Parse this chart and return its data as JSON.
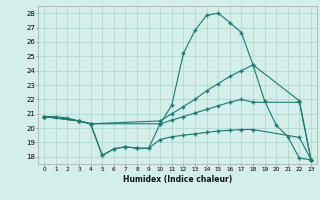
{
  "xlabel": "Humidex (Indice chaleur)",
  "line_color": "#1a7a6e",
  "bg_color": "#d4eeea",
  "grid_color": "#aed4ce",
  "xlim": [
    -0.5,
    23.5
  ],
  "ylim": [
    17.5,
    28.5
  ],
  "xticks": [
    0,
    1,
    2,
    3,
    4,
    5,
    6,
    7,
    8,
    9,
    10,
    11,
    12,
    13,
    14,
    15,
    16,
    17,
    18,
    19,
    20,
    21,
    22,
    23
  ],
  "yticks": [
    18,
    19,
    20,
    21,
    22,
    23,
    24,
    25,
    26,
    27,
    28
  ],
  "lines": [
    {
      "x": [
        0,
        1,
        2,
        3,
        4,
        5,
        6,
        7,
        8,
        9,
        10,
        11,
        12,
        13,
        14,
        15,
        16,
        17,
        18,
        19,
        20,
        21,
        22,
        23
      ],
      "y": [
        20.8,
        20.8,
        20.7,
        20.5,
        20.3,
        18.1,
        18.55,
        18.7,
        18.6,
        18.6,
        20.3,
        21.6,
        25.2,
        26.8,
        27.85,
        28.0,
        27.35,
        26.65,
        24.4,
        21.9,
        20.2,
        19.4,
        17.9,
        17.8
      ]
    },
    {
      "x": [
        0,
        3,
        4,
        10,
        11,
        12,
        13,
        14,
        15,
        16,
        17,
        18,
        22,
        23
      ],
      "y": [
        20.8,
        20.5,
        20.3,
        20.5,
        21.0,
        21.5,
        22.0,
        22.6,
        23.1,
        23.6,
        24.0,
        24.4,
        21.9,
        17.8
      ]
    },
    {
      "x": [
        0,
        3,
        4,
        10,
        11,
        12,
        13,
        14,
        15,
        16,
        17,
        18,
        22,
        23
      ],
      "y": [
        20.8,
        20.5,
        20.3,
        20.3,
        20.55,
        20.8,
        21.05,
        21.3,
        21.55,
        21.8,
        22.0,
        21.8,
        21.8,
        17.8
      ]
    },
    {
      "x": [
        0,
        3,
        4,
        5,
        6,
        7,
        8,
        9,
        10,
        11,
        12,
        13,
        14,
        15,
        16,
        17,
        18,
        22,
        23
      ],
      "y": [
        20.8,
        20.5,
        20.3,
        18.1,
        18.55,
        18.7,
        18.6,
        18.6,
        19.2,
        19.4,
        19.5,
        19.6,
        19.7,
        19.8,
        19.85,
        19.9,
        19.9,
        19.35,
        17.8
      ]
    }
  ]
}
